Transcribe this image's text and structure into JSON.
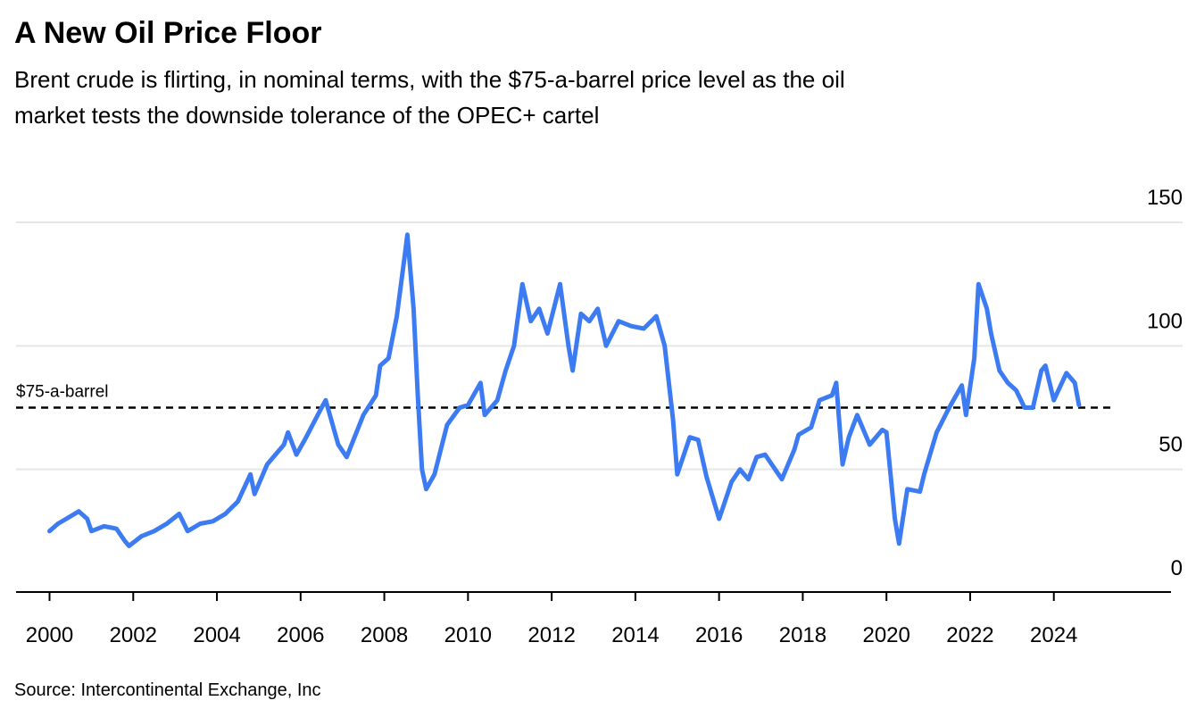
{
  "chart_data": {
    "type": "line",
    "title": "A New Oil Price Floor",
    "subtitle": [
      "Brent crude is flirting, in nominal terms, with the $75-a-barrel price level as the oil",
      "market tests the downside tolerance of the OPEC+ cartel"
    ],
    "source": "Source: Intercontinental Exchange, Inc",
    "annotation": {
      "text": "$75-a-barrel",
      "value": 75
    },
    "x": [
      2000.0,
      2000.2,
      2000.4,
      2000.7,
      2000.9,
      2001.0,
      2001.3,
      2001.6,
      2001.8,
      2001.9,
      2002.2,
      2002.5,
      2002.8,
      2003.1,
      2003.3,
      2003.6,
      2003.9,
      2004.2,
      2004.5,
      2004.8,
      2004.9,
      2005.2,
      2005.6,
      2005.7,
      2005.9,
      2006.1,
      2006.5,
      2006.6,
      2006.9,
      2007.1,
      2007.5,
      2007.8,
      2007.9,
      2008.1,
      2008.3,
      2008.5,
      2008.55,
      2008.7,
      2008.8,
      2008.9,
      2009.0,
      2009.2,
      2009.5,
      2009.8,
      2010.0,
      2010.3,
      2010.4,
      2010.7,
      2010.9,
      2011.1,
      2011.3,
      2011.5,
      2011.7,
      2011.9,
      2012.2,
      2012.4,
      2012.5,
      2012.7,
      2012.9,
      2013.1,
      2013.3,
      2013.6,
      2013.9,
      2014.2,
      2014.5,
      2014.7,
      2014.9,
      2015.0,
      2015.3,
      2015.5,
      2015.7,
      2016.0,
      2016.3,
      2016.5,
      2016.7,
      2016.9,
      2017.1,
      2017.5,
      2017.8,
      2017.9,
      2018.2,
      2018.4,
      2018.7,
      2018.8,
      2018.95,
      2019.1,
      2019.3,
      2019.6,
      2019.9,
      2020.0,
      2020.2,
      2020.3,
      2020.5,
      2020.8,
      2020.9,
      2021.2,
      2021.5,
      2021.8,
      2021.9,
      2022.1,
      2022.2,
      2022.4,
      2022.5,
      2022.7,
      2022.9,
      2023.1,
      2023.3,
      2023.5,
      2023.7,
      2023.8,
      2024.0,
      2024.3,
      2024.5,
      2024.6
    ],
    "series": [
      {
        "name": "Brent crude",
        "color": "#3d7bf2",
        "values": [
          25,
          28,
          30,
          33,
          30,
          25,
          27,
          26,
          21,
          19,
          23,
          25,
          28,
          32,
          25,
          28,
          29,
          32,
          37,
          48,
          40,
          52,
          60,
          65,
          56,
          62,
          75,
          78,
          60,
          55,
          72,
          80,
          92,
          95,
          112,
          138,
          145,
          115,
          80,
          50,
          42,
          48,
          68,
          75,
          76,
          85,
          72,
          78,
          90,
          100,
          125,
          110,
          115,
          105,
          125,
          100,
          90,
          113,
          110,
          115,
          100,
          110,
          108,
          107,
          112,
          100,
          70,
          48,
          63,
          62,
          47,
          30,
          45,
          50,
          46,
          55,
          56,
          46,
          58,
          64,
          67,
          78,
          80,
          85,
          52,
          63,
          72,
          60,
          66,
          65,
          30,
          20,
          42,
          41,
          48,
          65,
          75,
          84,
          72,
          95,
          125,
          115,
          105,
          90,
          85,
          82,
          75,
          75,
          90,
          92,
          78,
          89,
          85,
          76
        ]
      }
    ],
    "xlim": [
      1999.2,
      2026.8
    ],
    "ylim": [
      0,
      150
    ],
    "xticks": [
      2000,
      2002,
      2004,
      2006,
      2008,
      2010,
      2012,
      2014,
      2016,
      2018,
      2020,
      2022,
      2024
    ],
    "yticks": [
      0,
      50,
      100,
      150
    ],
    "grid": true
  }
}
